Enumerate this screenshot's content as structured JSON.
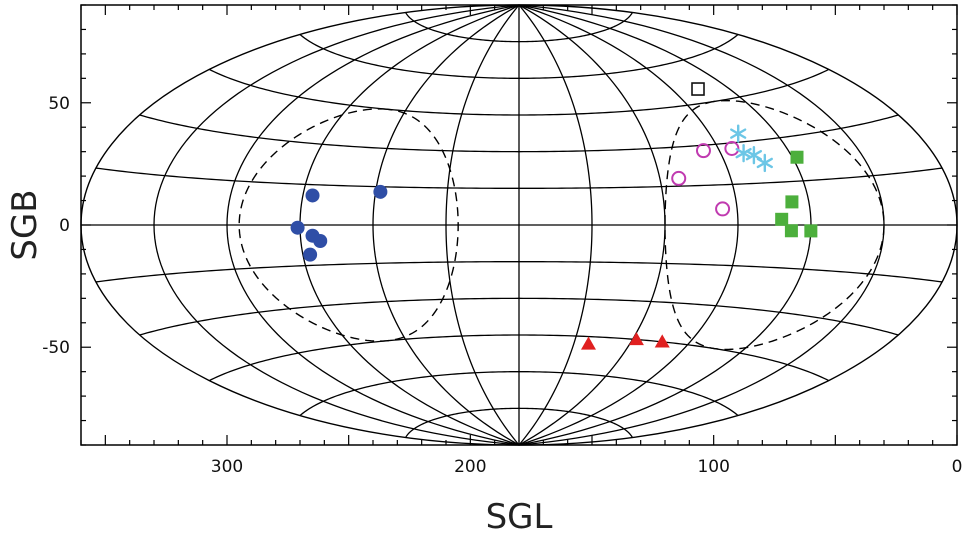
{
  "chart_data": {
    "type": "scatter",
    "projection": "aitoff",
    "xlabel": "SGL",
    "ylabel": "SGB",
    "xlim": [
      360,
      0
    ],
    "ylim": [
      -90,
      90
    ],
    "x_ticks": [
      300,
      200,
      100,
      0
    ],
    "y_ticks": [
      50,
      0,
      -50
    ],
    "grid": true,
    "series": [
      {
        "marker": "filled-circle",
        "color": "#2f4ea6",
        "points": [
          [
            266,
            11
          ],
          [
            238,
            13
          ],
          [
            271,
            -1
          ],
          [
            265,
            -4
          ],
          [
            262,
            -6
          ],
          [
            267,
            -11
          ]
        ]
      },
      {
        "marker": "open-circle",
        "color": "#c03ab0",
        "points": [
          [
            97,
            28
          ],
          [
            84,
            28
          ],
          [
            112,
            18
          ],
          [
            96,
            6
          ]
        ]
      },
      {
        "marker": "asterisk",
        "color": "#6cc6e6",
        "points": [
          [
            77,
            33
          ],
          [
            80,
            26
          ],
          [
            76,
            25
          ],
          [
            73,
            22
          ]
        ]
      },
      {
        "marker": "filled-square",
        "color": "#4caf3c",
        "points": [
          [
            58,
            23
          ],
          [
            67,
            8
          ],
          [
            72,
            2
          ],
          [
            68,
            -2
          ],
          [
            60,
            -2
          ]
        ]
      },
      {
        "marker": "open-square",
        "color": "#111111",
        "points": [
          [
            76,
            50
          ]
        ]
      },
      {
        "marker": "filled-triangle",
        "color": "#e02020",
        "points": [
          [
            142,
            -48
          ],
          [
            118,
            -45
          ],
          [
            104,
            -45
          ]
        ]
      }
    ],
    "dashed_circles": [
      {
        "center": [
          250,
          0
        ],
        "radius_deg": 45
      },
      {
        "center": [
          75,
          0
        ],
        "radius_deg": 45
      }
    ]
  }
}
